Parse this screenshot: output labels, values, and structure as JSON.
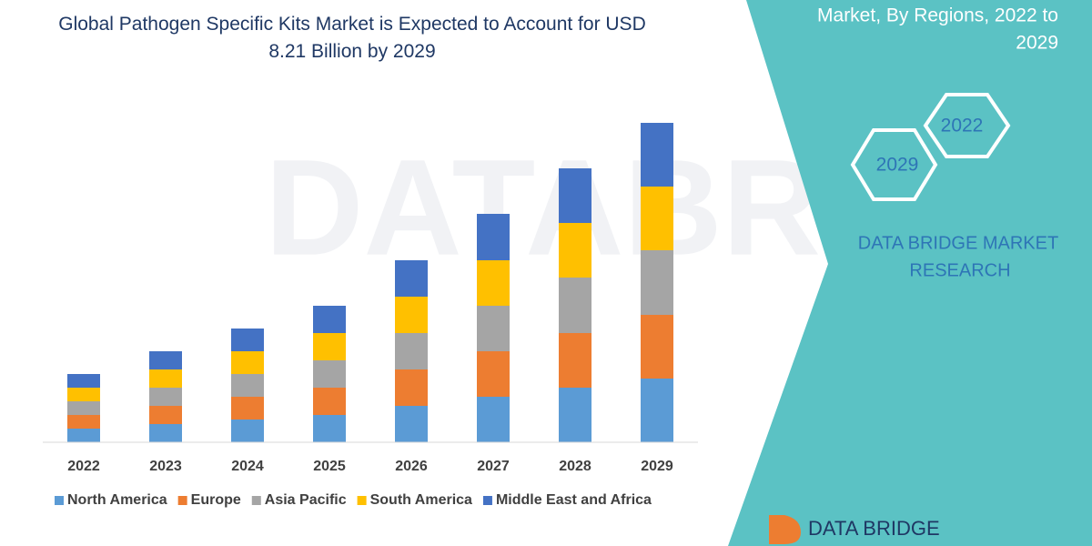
{
  "chart_data": {
    "type": "stacked_bar",
    "title": "Global Pathogen Specific Kits Market is Expected to Account for USD 8.21 Billion by 2029",
    "categories": [
      "2022",
      "2023",
      "2024",
      "2025",
      "2026",
      "2027",
      "2028",
      "2029"
    ],
    "series": [
      {
        "name": "North America",
        "color": "#5b9bd5",
        "values": [
          15,
          20,
          25,
          30,
          40,
          50,
          60,
          70
        ]
      },
      {
        "name": "Europe",
        "color": "#ed7d31",
        "values": [
          15,
          20,
          25,
          30,
          40,
          50,
          60,
          70
        ]
      },
      {
        "name": "Asia Pacific",
        "color": "#a5a5a5",
        "values": [
          15,
          20,
          25,
          30,
          40,
          50,
          61,
          71
        ]
      },
      {
        "name": "South America",
        "color": "#ffc000",
        "values": [
          15,
          20,
          25,
          30,
          40,
          50,
          60,
          70
        ]
      },
      {
        "name": "Middle East and Africa",
        "color": "#4472c4",
        "values": [
          15,
          20,
          25,
          30,
          40,
          51,
          60,
          70
        ]
      }
    ],
    "ylim": [
      0,
      351
    ],
    "legend": "bottom"
  },
  "panel": {
    "heading_lines": [
      "Market, By Regions, 2022 to",
      "2029"
    ],
    "hexagons": [
      "2022",
      "2029"
    ],
    "brand_lines": [
      "DATA BRIDGE MARKET",
      "RESEARCH"
    ],
    "logo": "DATA BRIDGE"
  }
}
